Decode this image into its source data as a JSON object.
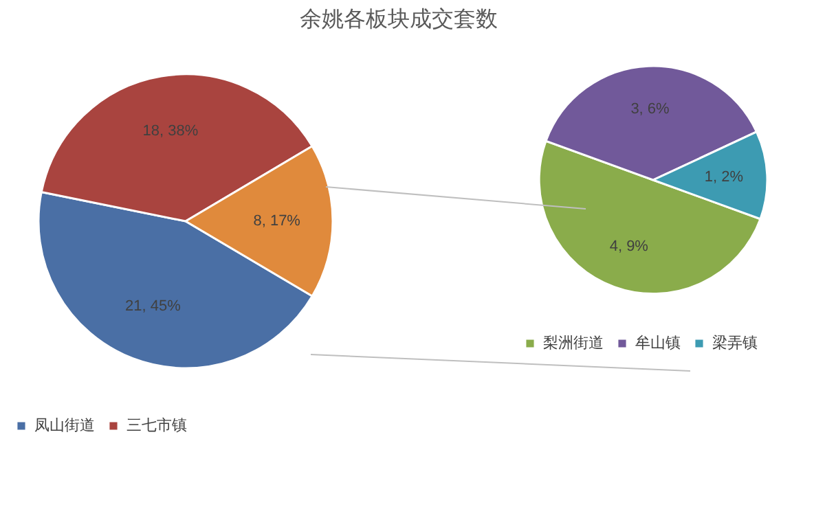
{
  "chart_data": [
    {
      "type": "pie",
      "title": "余姚各板块成交套数",
      "categories": [
        "凤山街道",
        "三七市镇",
        null
      ],
      "values": [
        21,
        18,
        8
      ],
      "colors": [
        "#4a6fa5",
        "#a9443f",
        "#e08a3c"
      ],
      "value_labels": [
        "21, 45%",
        "18, 38%",
        "8, 17%"
      ],
      "legend": "bottom"
    },
    {
      "type": "pie",
      "categories": [
        "梨洲街道",
        "牟山镇",
        "梁弄镇"
      ],
      "values": [
        4,
        3,
        1
      ],
      "colors": [
        "#8aac4b",
        "#71599a",
        "#3d9bb2"
      ],
      "value_labels": [
        "4, 9%",
        "3, 6%",
        "1, 2%"
      ],
      "legend": "bottom"
    }
  ]
}
